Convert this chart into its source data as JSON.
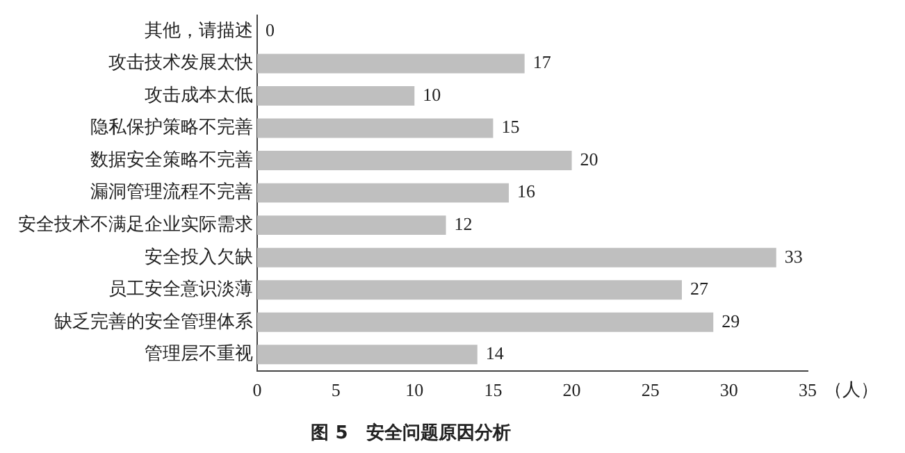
{
  "chart_data": {
    "type": "bar",
    "orientation": "horizontal",
    "title": "图 5　安全问题原因分析",
    "xlabel": "（人）",
    "categories": [
      "其他，请描述",
      "攻击技术发展太快",
      "攻击成本太低",
      "隐私保护策略不完善",
      "数据安全策略不完善",
      "漏洞管理流程不完善",
      "安全技术不满足企业实际需求",
      "安全投入欠缺",
      "员工安全意识淡薄",
      "缺乏完善的安全管理体系",
      "管理层不重视"
    ],
    "values": [
      0,
      17,
      10,
      15,
      20,
      16,
      12,
      33,
      27,
      29,
      14
    ],
    "color": "#bfbfbf",
    "xlim": [
      0,
      35
    ],
    "xticks": [
      0,
      5,
      10,
      15,
      20,
      25,
      30,
      35
    ],
    "grid": false,
    "legend": false,
    "data_labels": true
  }
}
